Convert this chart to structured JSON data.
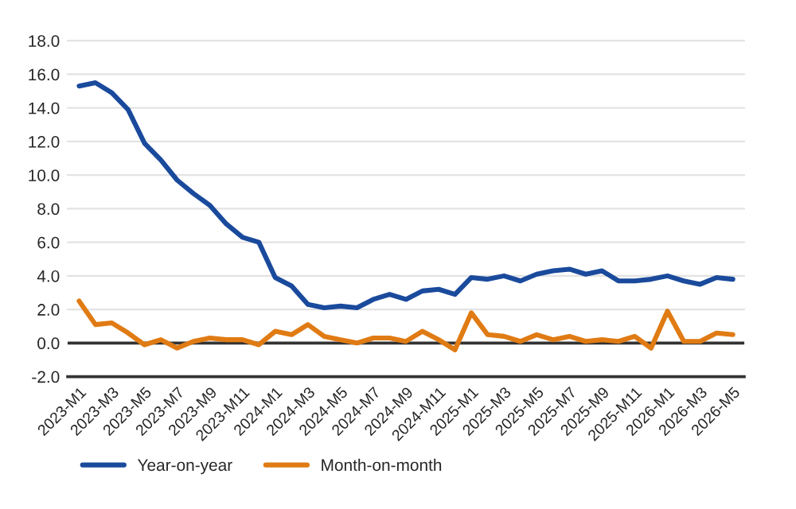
{
  "chart_data": {
    "type": "line",
    "categories": [
      "2023-M1",
      null,
      "2023-M3",
      null,
      "2023-M5",
      null,
      "2023-M7",
      null,
      "2023-M9",
      null,
      "2023-M11",
      null,
      "2024-M1",
      null,
      "2024-M3",
      null,
      "2024-M5",
      null,
      "2024-M7",
      null,
      "2024-M9",
      null,
      "2024-M11",
      null,
      "2025-M1",
      null,
      "2025-M3",
      null,
      "2025-M5",
      null,
      "2025-M7",
      null,
      "2025-M9",
      null,
      "2025-M11",
      null,
      "2026-M1",
      null,
      "2026-M3",
      null,
      "2026-M5"
    ],
    "series": [
      {
        "name": "Year-on-year",
        "color": "#1a4a9c",
        "values": [
          15.3,
          15.5,
          14.9,
          13.9,
          11.9,
          10.9,
          9.7,
          8.9,
          8.2,
          7.1,
          6.3,
          6.0,
          3.9,
          3.4,
          2.3,
          2.1,
          2.2,
          2.1,
          2.6,
          2.9,
          2.6,
          3.1,
          3.2,
          2.9,
          3.9,
          3.8,
          4.0,
          3.7,
          4.1,
          4.3,
          4.4,
          4.1,
          4.3,
          3.7,
          3.7,
          3.8,
          4.0,
          3.7,
          3.5,
          3.9,
          3.8
        ]
      },
      {
        "name": "Month-on-month",
        "color": "#e07b14",
        "values": [
          2.5,
          1.1,
          1.2,
          0.6,
          -0.1,
          0.2,
          -0.3,
          0.1,
          0.3,
          0.2,
          0.2,
          -0.1,
          0.7,
          0.5,
          1.1,
          0.4,
          0.2,
          0.0,
          0.3,
          0.3,
          0.1,
          0.7,
          0.2,
          -0.4,
          1.8,
          0.5,
          0.4,
          0.1,
          0.5,
          0.2,
          0.4,
          0.1,
          0.2,
          0.1,
          0.4,
          -0.3,
          1.9,
          0.1,
          0.1,
          0.6,
          0.5
        ]
      }
    ],
    "ylim": [
      -2,
      18
    ],
    "yticks": [
      {
        "value": -2,
        "label": "-2.0"
      },
      {
        "value": 0,
        "label": "0.0"
      },
      {
        "value": 2,
        "label": "2.0"
      },
      {
        "value": 4,
        "label": "4.0"
      },
      {
        "value": 6,
        "label": "6.0"
      },
      {
        "value": 8,
        "label": "8.0"
      },
      {
        "value": 10,
        "label": "10.0"
      },
      {
        "value": 12,
        "label": "12.0"
      },
      {
        "value": 14,
        "label": "14.0"
      },
      {
        "value": 16,
        "label": "16.0"
      },
      {
        "value": 18,
        "label": "18.0"
      }
    ],
    "ref_lines": [
      {
        "axis": "y",
        "value": 0,
        "color": "#333333"
      }
    ],
    "grid": "y",
    "legend": "bottom",
    "line_style": "solid",
    "marker": "none"
  }
}
